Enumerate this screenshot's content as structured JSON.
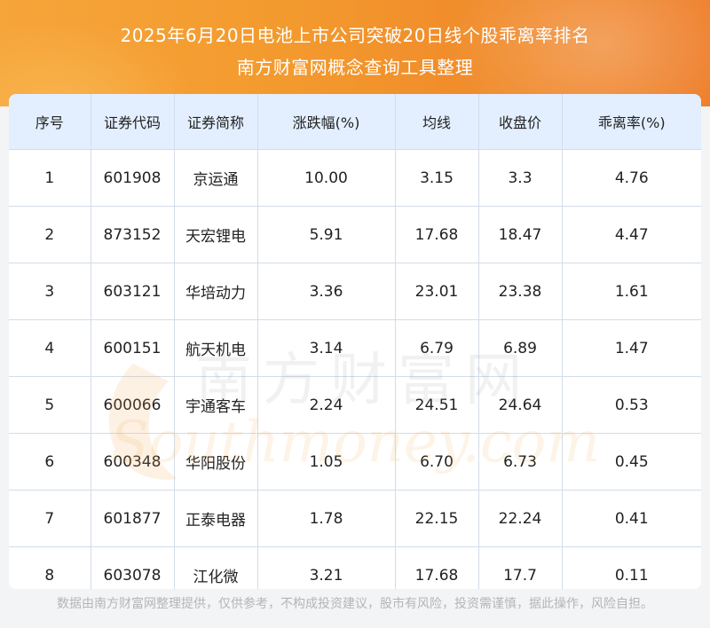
{
  "header": {
    "title_line1": "2025年6月20日电池上市公司突破20日线个股乖离率排名",
    "title_line2": "南方财富网概念查询工具整理"
  },
  "table": {
    "columns": [
      "序号",
      "证券代码",
      "证券简称",
      "涨跌幅(%)",
      "均线",
      "收盘价",
      "乖离率(%)"
    ],
    "rows": [
      [
        "1",
        "601908",
        "京运通",
        "10.00",
        "3.15",
        "3.3",
        "4.76"
      ],
      [
        "2",
        "873152",
        "天宏锂电",
        "5.91",
        "17.68",
        "18.47",
        "4.47"
      ],
      [
        "3",
        "603121",
        "华培动力",
        "3.36",
        "23.01",
        "23.38",
        "1.61"
      ],
      [
        "4",
        "600151",
        "航天机电",
        "3.14",
        "6.79",
        "6.89",
        "1.47"
      ],
      [
        "5",
        "600066",
        "宇通客车",
        "2.24",
        "24.51",
        "24.64",
        "0.53"
      ],
      [
        "6",
        "600348",
        "华阳股份",
        "1.05",
        "6.70",
        "6.73",
        "0.45"
      ],
      [
        "7",
        "601877",
        "正泰电器",
        "1.78",
        "22.15",
        "22.24",
        "0.41"
      ],
      [
        "8",
        "603078",
        "江化微",
        "3.21",
        "17.68",
        "17.7",
        "0.11"
      ]
    ]
  },
  "watermark": {
    "text_cn": "南方财富网",
    "text_en": "Southmoney.com"
  },
  "footer": {
    "disclaimer": "数据由南方财富网整理提供，仅供参考，不构成投资建议，股市有风险，投资需谨慎，据此操作，风险自担。"
  },
  "colors": {
    "header_orange": "#f39a2e",
    "table_header_bg": "#e3efff",
    "grid_line": "#d3dcea",
    "footer_text": "#b5b5b5"
  }
}
